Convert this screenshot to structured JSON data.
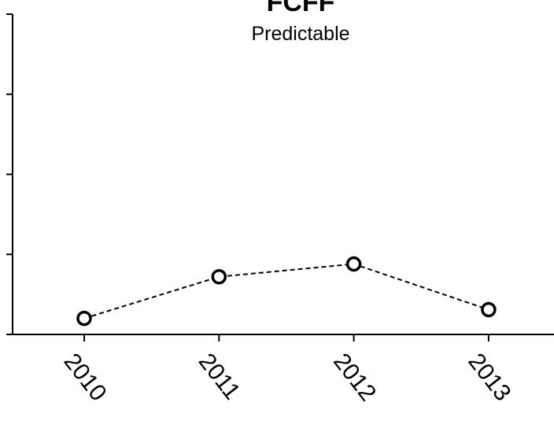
{
  "chart_data": {
    "type": "line",
    "title": "FCFF",
    "subtitle": "Predictable",
    "xlabel": "",
    "ylabel": "",
    "categories": [
      "2010",
      "2011",
      "2012",
      "2013"
    ],
    "series": [
      {
        "values": [
          0.2,
          0.72,
          0.88,
          0.31
        ],
        "line_style": "dashed",
        "marker": "open-circle",
        "color": "#000000"
      }
    ],
    "ylim": [
      0,
      4
    ],
    "y_ticks": [
      0,
      1,
      2,
      3,
      4
    ],
    "y_tick_labels_visible": false,
    "grid": false,
    "legend": "none"
  }
}
